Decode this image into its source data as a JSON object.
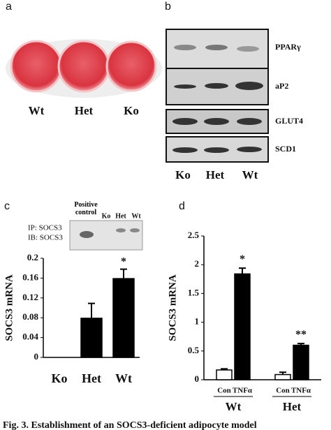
{
  "panel_labels": [
    "a",
    "b",
    "c",
    "d"
  ],
  "panel_a": {
    "labels": [
      "Wt",
      "Het",
      "Ko"
    ]
  },
  "panel_b": {
    "proteins": [
      "PPARγ",
      "aP2",
      "GLUT4",
      "SCD1"
    ],
    "lanes": [
      "Ko",
      "Het",
      "Wt"
    ]
  },
  "panel_c_blot": {
    "lanes": [
      "Positive control",
      "Ko",
      "Het",
      "Wt"
    ],
    "rows": [
      "IP: SOCS3",
      "IB: SOCS3"
    ]
  },
  "chart_data": [
    {
      "type": "bar",
      "y_label": "SOCS3 mRNA",
      "categories": [
        "Ko",
        "Het",
        "Wt"
      ],
      "values": [
        0,
        0.079,
        0.159
      ],
      "errors": [
        null,
        0.03,
        0.019
      ],
      "color": "#000000",
      "ylim": [
        0,
        0.2
      ],
      "yticks": [
        0,
        0.04,
        0.08,
        0.12,
        0.16,
        0.2
      ],
      "annotations": [
        "*"
      ]
    },
    {
      "type": "grouped_bar",
      "y_label": "SOCS3 mRNA",
      "categories": [
        "Wt",
        "Het"
      ],
      "series": [
        {
          "name": "Con",
          "color": "#ffffff",
          "values": [
            0.17,
            0.09
          ],
          "errors": [
            0.02,
            0.04
          ]
        },
        {
          "name": "TNFα",
          "color": "#000000",
          "values": [
            1.84,
            0.6
          ],
          "errors": [
            0.1,
            0.03
          ]
        }
      ],
      "ylim": [
        0,
        2.5
      ],
      "yticks": [
        0,
        0.5,
        1,
        1.5,
        2,
        2.5
      ],
      "annotations": [
        "*",
        "**"
      ]
    }
  ],
  "caption": "Fig. 3. Establishment of an SOCS3-deficient adipocyte model"
}
